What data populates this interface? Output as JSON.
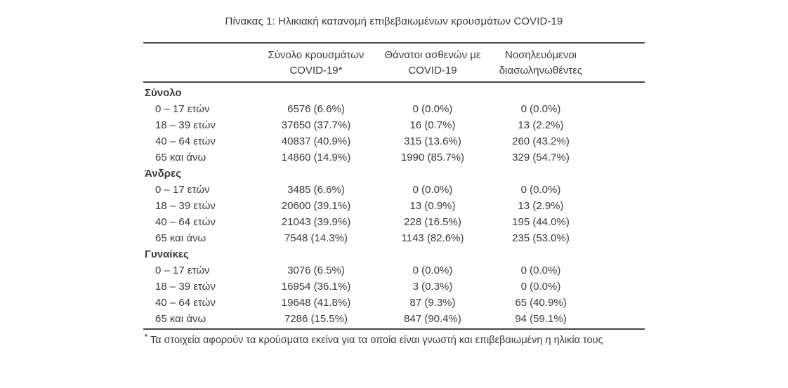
{
  "title": "Πίνακας 1: Ηλικιακή κατανομή επιβεβαιωμένων κρουσμάτων COVID-19",
  "table": {
    "column_headers": [
      [
        "Σύνολο κρουσμάτων",
        "COVID-19*"
      ],
      [
        "Θάνατοι ασθενών με",
        "COVID-19"
      ],
      [
        "Νοσηλευόμενοι",
        "διασωληνωθέντες"
      ]
    ],
    "sections": [
      {
        "label": "Σύνολο",
        "rows": [
          {
            "label": "0 – 17 ετών",
            "cases": "6576 (6.6%)",
            "deaths": "0 (0.0%)",
            "intubated": "0 (0.0%)"
          },
          {
            "label": "18 – 39 ετών",
            "cases": "37650 (37.7%)",
            "deaths": "16 (0.7%)",
            "intubated": "13 (2.2%)"
          },
          {
            "label": "40 – 64 ετών",
            "cases": "40837 (40.9%)",
            "deaths": "315 (13.6%)",
            "intubated": "260 (43.2%)"
          },
          {
            "label": "65 και άνω",
            "cases": "14860 (14.9%)",
            "deaths": "1990 (85.7%)",
            "intubated": "329 (54.7%)"
          }
        ]
      },
      {
        "label": "Άνδρες",
        "rows": [
          {
            "label": "0 – 17 ετών",
            "cases": "3485 (6.6%)",
            "deaths": "0 (0.0%)",
            "intubated": "0 (0.0%)"
          },
          {
            "label": "18 – 39 ετών",
            "cases": "20600 (39.1%)",
            "deaths": "13 (0.9%)",
            "intubated": "13 (2.9%)"
          },
          {
            "label": "40 – 64 ετών",
            "cases": "21043 (39.9%)",
            "deaths": "228 (16.5%)",
            "intubated": "195 (44.0%)"
          },
          {
            "label": "65 και άνω",
            "cases": "7548 (14.3%)",
            "deaths": "1143 (82.6%)",
            "intubated": "235 (53.0%)"
          }
        ]
      },
      {
        "label": "Γυναίκες",
        "rows": [
          {
            "label": "0 – 17 ετών",
            "cases": "3076 (6.5%)",
            "deaths": "0 (0.0%)",
            "intubated": "0 (0.0%)"
          },
          {
            "label": "18 – 39 ετών",
            "cases": "16954 (36.1%)",
            "deaths": "3 (0.3%)",
            "intubated": "0 (0.0%)"
          },
          {
            "label": "40 – 64 ετών",
            "cases": "19648 (41.8%)",
            "deaths": "87 (9.3%)",
            "intubated": "65 (40.9%)"
          },
          {
            "label": "65 και άνω",
            "cases": "7286 (15.5%)",
            "deaths": "847 (90.4%)",
            "intubated": "94 (59.1%)"
          }
        ]
      }
    ],
    "footnote_marker": "*",
    "footnote": "Τα στοιχεία αφορούν τα κρούσματα εκείνα για τα οποία είναι γνωστή και επιβεβαιωμένη η ηλικία τους"
  },
  "colors": {
    "text": "#3a3a3a",
    "rule": "#444444",
    "background": "#ffffff"
  }
}
